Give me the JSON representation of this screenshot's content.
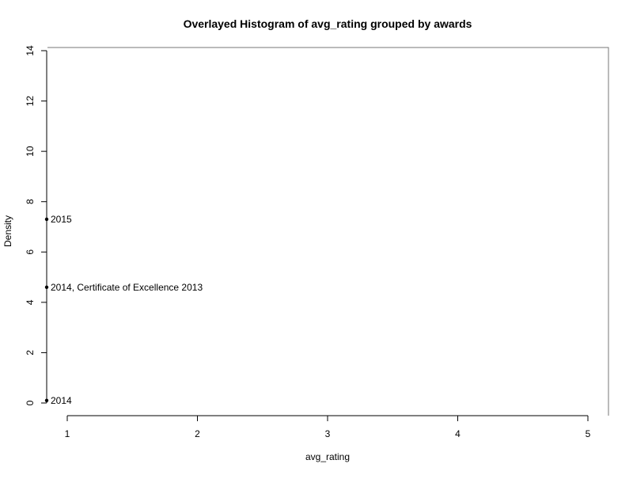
{
  "chart_data": {
    "type": "bar",
    "title": "Overlayed Histogram of avg_rating grouped by awards",
    "xlabel": "avg_rating",
    "ylabel": "Density",
    "xlim": [
      1,
      5
    ],
    "ylim": [
      0,
      14
    ],
    "x_ticks": [
      "1",
      "2",
      "3",
      "4",
      "5"
    ],
    "y_ticks": [
      "0",
      "2",
      "4",
      "6",
      "8",
      "10",
      "12",
      "14"
    ],
    "grid": false,
    "legend_placement": "left edge, partially clipped",
    "legend_entries": [
      {
        "text": "2015",
        "y": 7.3
      },
      {
        "text": "2014, Certificate of Excellence 2013",
        "y": 4.6
      },
      {
        "text": "2014",
        "y": 0.1
      }
    ],
    "series": []
  }
}
